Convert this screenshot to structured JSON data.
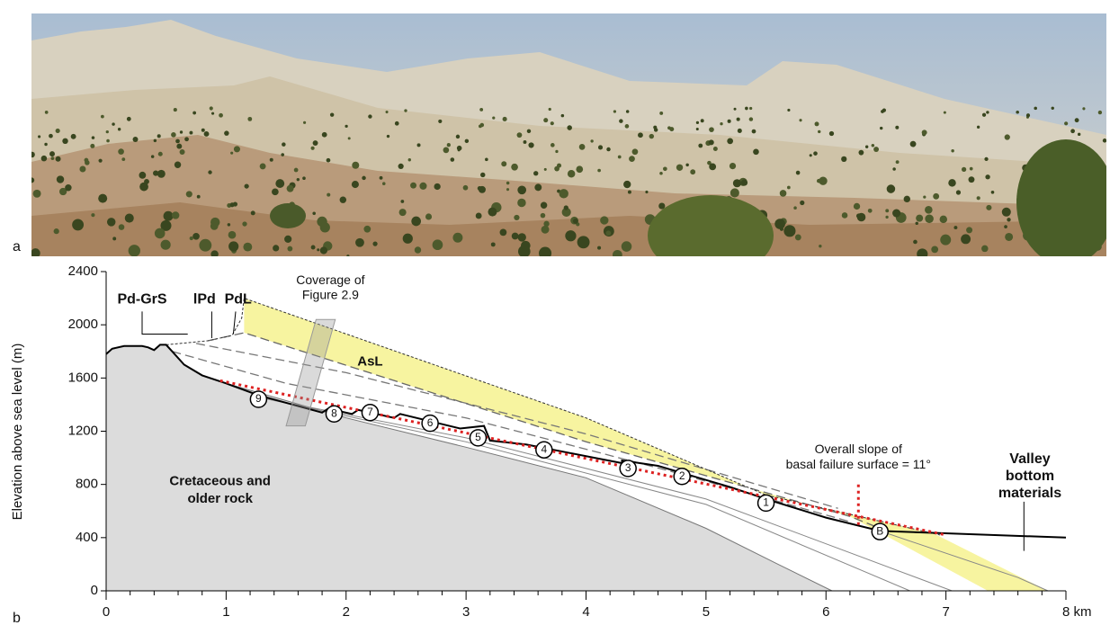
{
  "panel_a": {
    "label": "a"
  },
  "panel_b": {
    "label": "b",
    "y_axis_label": "Elevation above sea level (m)",
    "xlim": [
      0,
      8
    ],
    "ylim": [
      0,
      2400
    ],
    "xticks": [
      0,
      1,
      2,
      3,
      4,
      5,
      6,
      7,
      {
        "value": 8,
        "label": "8 km"
      }
    ],
    "yticks": [
      0,
      400,
      800,
      1200,
      1600,
      2000,
      2400
    ],
    "unit_labels": [
      "Pd-GrS",
      "lPd",
      "PdL"
    ],
    "coverage": [
      "Coverage of",
      "Figure 2.9"
    ],
    "asl": "AsL",
    "bedrock": [
      "Cretaceous and",
      "older rock"
    ],
    "slope_note": [
      "Overall slope of",
      "basal failure surface = 11°"
    ],
    "valley": [
      "Valley",
      "bottom",
      "materials"
    ],
    "markers": [
      "9",
      "8",
      "7",
      "6",
      "5",
      "4",
      "3",
      "2",
      "1",
      "B"
    ]
  }
}
